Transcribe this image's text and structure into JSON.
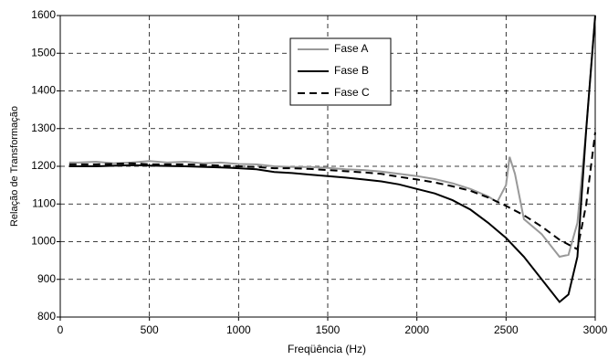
{
  "chart_data": {
    "type": "line",
    "x_label": "Freqüência (Hz)",
    "y_label": "Relação de Transformação",
    "xlim": [
      0,
      3000
    ],
    "xticks": [
      0,
      500,
      1000,
      1500,
      2000,
      2500,
      3000
    ],
    "ylim": [
      800,
      1600
    ],
    "yticks": [
      800,
      900,
      1000,
      1100,
      1200,
      1300,
      1400,
      1500,
      1600
    ],
    "grid": true,
    "series": [
      {
        "name": "Fase A",
        "color": "#999999",
        "dash": "solid",
        "x": [
          50,
          100,
          200,
          300,
          400,
          500,
          600,
          700,
          800,
          900,
          1000,
          1100,
          1200,
          1300,
          1400,
          1500,
          1600,
          1700,
          1800,
          1900,
          2000,
          2100,
          2200,
          2300,
          2400,
          2450,
          2500,
          2520,
          2550,
          2600,
          2700,
          2800,
          2850,
          2900,
          2950,
          3000
        ],
        "values": [
          1210,
          1210,
          1212,
          1208,
          1210,
          1214,
          1210,
          1212,
          1208,
          1210,
          1206,
          1205,
          1200,
          1198,
          1198,
          1196,
          1192,
          1190,
          1186,
          1180,
          1174,
          1166,
          1155,
          1140,
          1120,
          1105,
          1150,
          1225,
          1180,
          1060,
          1020,
          960,
          965,
          1050,
          1300,
          1600
        ]
      },
      {
        "name": "Fase B",
        "color": "#000000",
        "dash": "solid",
        "x": [
          50,
          200,
          400,
          500,
          700,
          900,
          1000,
          1100,
          1200,
          1300,
          1400,
          1500,
          1600,
          1700,
          1800,
          1900,
          2000,
          2100,
          2200,
          2300,
          2400,
          2500,
          2600,
          2700,
          2800,
          2850,
          2900,
          2950,
          3000
        ],
        "values": [
          1200,
          1200,
          1203,
          1202,
          1200,
          1197,
          1195,
          1192,
          1185,
          1182,
          1178,
          1174,
          1170,
          1165,
          1160,
          1152,
          1140,
          1128,
          1110,
          1085,
          1050,
          1010,
          960,
          900,
          840,
          860,
          960,
          1300,
          1600
        ]
      },
      {
        "name": "Fase C",
        "color": "#000000",
        "dash": "dashed",
        "x": [
          50,
          200,
          400,
          500,
          700,
          900,
          1000,
          1100,
          1200,
          1300,
          1400,
          1500,
          1600,
          1700,
          1800,
          1900,
          2000,
          2100,
          2200,
          2300,
          2400,
          2500,
          2600,
          2700,
          2800,
          2900,
          2950,
          3000
        ],
        "values": [
          1205,
          1205,
          1208,
          1205,
          1205,
          1202,
          1200,
          1198,
          1195,
          1195,
          1193,
          1190,
          1187,
          1184,
          1180,
          1172,
          1165,
          1157,
          1147,
          1135,
          1117,
          1095,
          1070,
          1040,
          1005,
          980,
          1100,
          1290
        ]
      }
    ]
  }
}
